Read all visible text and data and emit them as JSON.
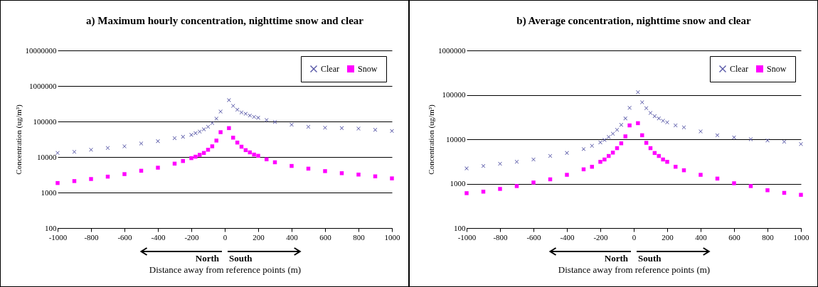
{
  "chart_data": [
    {
      "type": "scatter",
      "title": "a) Maximum hourly concentration, nighttime snow and clear",
      "xlabel": "Distance  away from reference  points (m)",
      "ylabel": "Concentration (ug/m³)",
      "annotations": [
        "North",
        "South"
      ],
      "x": [
        -1000,
        -900,
        -800,
        -700,
        -600,
        -500,
        -400,
        -300,
        -250,
        -200,
        -175,
        -150,
        -125,
        -100,
        -75,
        -50,
        -25,
        25,
        50,
        75,
        100,
        125,
        150,
        175,
        200,
        250,
        300,
        400,
        500,
        600,
        700,
        800,
        900,
        1000
      ],
      "series": [
        {
          "name": "Clear",
          "color": "#5a5aa8",
          "marker": "cross",
          "values": [
            13000,
            14000,
            16000,
            18000,
            20000,
            24000,
            28000,
            34000,
            37000,
            42000,
            47000,
            52000,
            60000,
            71000,
            90000,
            120000,
            190000,
            400000,
            275000,
            215000,
            180000,
            165000,
            147000,
            135000,
            128000,
            110000,
            97000,
            81000,
            71000,
            67000,
            65000,
            63000,
            58000,
            54000
          ]
        },
        {
          "name": "Snow",
          "color": "#ff00ff",
          "marker": "square",
          "values": [
            1850,
            2100,
            2400,
            2800,
            3300,
            4100,
            5000,
            6500,
            7700,
            9300,
            10200,
            11500,
            13000,
            16000,
            20000,
            29000,
            50000,
            65000,
            35000,
            25500,
            19500,
            15600,
            13500,
            11700,
            10800,
            8600,
            7100,
            5600,
            4700,
            4000,
            3500,
            3200,
            2850,
            2500
          ]
        }
      ],
      "log": "y",
      "xlim": [
        -1000,
        1000
      ],
      "xticks": [
        -1000,
        -800,
        -600,
        -400,
        -200,
        0,
        200,
        400,
        600,
        800,
        1000
      ],
      "ylim": [
        100,
        10000000
      ],
      "yticks": [
        100,
        1000,
        10000,
        100000,
        1000000,
        10000000
      ],
      "grid": "y",
      "legend": "top right"
    },
    {
      "type": "scatter",
      "title": "b) Average concentration, nighttime snow and clear",
      "xlabel": "Distance  away from reference  points (m)",
      "ylabel": "Concentration (ug/m³)",
      "annotations": [
        "North",
        "South"
      ],
      "x": [
        -1000,
        -900,
        -800,
        -700,
        -600,
        -500,
        -400,
        -300,
        -250,
        -200,
        -175,
        -150,
        -125,
        -100,
        -75,
        -50,
        -25,
        25,
        50,
        75,
        100,
        125,
        150,
        175,
        200,
        250,
        300,
        400,
        500,
        600,
        700,
        800,
        900,
        1000
      ],
      "series": [
        {
          "name": "Clear",
          "color": "#5a5aa8",
          "marker": "cross",
          "values": [
            2200,
            2500,
            2800,
            3100,
            3500,
            4200,
            4900,
            6000,
            7100,
            8500,
            9600,
            11300,
            13300,
            16300,
            21000,
            29500,
            51000,
            115000,
            68000,
            50000,
            39000,
            33000,
            29500,
            26000,
            24000,
            20500,
            18500,
            15000,
            12300,
            11000,
            10000,
            9400,
            8800,
            7800
          ]
        },
        {
          "name": "Snow",
          "color": "#ff00ff",
          "marker": "square",
          "values": [
            610,
            660,
            760,
            880,
            1060,
            1250,
            1580,
            2100,
            2400,
            3100,
            3500,
            4200,
            5000,
            6300,
            8100,
            11600,
            20500,
            23000,
            12300,
            8300,
            6300,
            4900,
            4200,
            3500,
            3100,
            2400,
            2000,
            1580,
            1300,
            1020,
            880,
            710,
            620,
            560
          ]
        }
      ],
      "log": "y",
      "xlim": [
        -1000,
        1000
      ],
      "xticks": [
        -1000,
        -800,
        -600,
        -400,
        -200,
        0,
        200,
        400,
        600,
        800,
        1000
      ],
      "ylim": [
        100,
        1000000
      ],
      "yticks": [
        100,
        1000,
        10000,
        100000,
        1000000
      ],
      "grid": "y",
      "legend": "top right"
    }
  ]
}
